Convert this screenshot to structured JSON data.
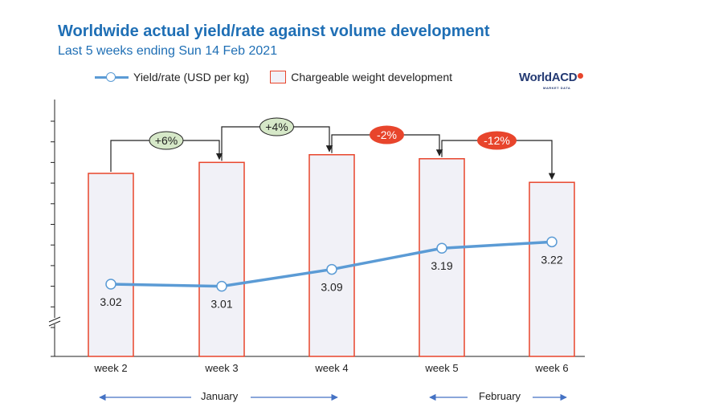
{
  "title": "Worldwide actual yield/rate against volume development",
  "subtitle": "Last 5 weeks ending Sun 14 Feb 2021",
  "legend": {
    "line_label": "Yield/rate (USD per kg)",
    "bar_label": "Chargeable weight development"
  },
  "logo": {
    "text": "WorldACD",
    "sub": "MARKET DATA"
  },
  "months": {
    "january": "January",
    "february": "February"
  },
  "colors": {
    "title": "#1f6fb5",
    "line": "#5b9bd5",
    "bar_border": "#e8452c",
    "bar_fill": "#f1f1f7",
    "positive_badge": "#d6e8c8",
    "negative_badge": "#e8452c"
  },
  "chart_data": {
    "type": "bar",
    "categories": [
      "week 2",
      "week 3",
      "week 4",
      "week 5",
      "week 6"
    ],
    "series": [
      {
        "type": "bar",
        "values": [
          100,
          106,
          110.2,
          108.0,
          95.1
        ]
      },
      {
        "type": "line",
        "values": [
          3.02,
          3.01,
          3.09,
          3.19,
          3.22
        ],
        "value_labels": [
          "3.02",
          "3.01",
          "3.09",
          "3.19",
          "3.22"
        ]
      }
    ],
    "changes": [
      {
        "from": "week 2",
        "to": "week 3",
        "label": "+6%",
        "sign": "positive"
      },
      {
        "from": "week 3",
        "to": "week 4",
        "label": "+4%",
        "sign": "positive"
      },
      {
        "from": "week 4",
        "to": "week 5",
        "label": "-2%",
        "sign": "negative"
      },
      {
        "from": "week 5",
        "to": "week 6",
        "label": "-12%",
        "sign": "negative"
      }
    ],
    "grid": false,
    "legend_position": "top"
  }
}
